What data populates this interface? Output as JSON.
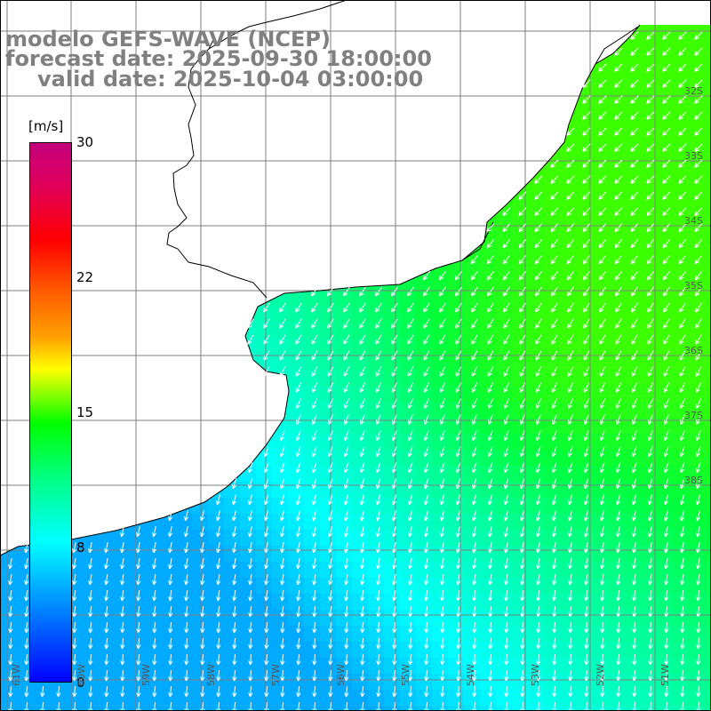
{
  "titles": {
    "model": "modelo GEFS-WAVE (NCEP)",
    "forecast": "forecast date: 2025-09-30 18:00:00",
    "valid": "valid date: 2025-10-04 03:00:00"
  },
  "colorbar": {
    "units": "[m/s]",
    "ticks": [
      {
        "label": "30",
        "value": 30
      },
      {
        "label": "22",
        "value": 22
      },
      {
        "label": "15",
        "value": 15
      },
      {
        "label": "8",
        "value": 8
      },
      {
        "label": "0",
        "value": 0
      }
    ],
    "colors": [
      "#0000ff",
      "#0080ff",
      "#00ffff",
      "#00ff80",
      "#00ff00",
      "#80ff00",
      "#ffff00",
      "#ffa000",
      "#ff6000",
      "#ff0000",
      "#c4007c"
    ]
  },
  "axes": {
    "lon_labels": [
      "61W",
      "60W",
      "59W",
      "58W",
      "57W",
      "56W",
      "55W",
      "54W",
      "53W",
      "52W",
      "51W"
    ],
    "lat_labels": [
      "32S",
      "33S",
      "34S",
      "35S",
      "36S",
      "37S",
      "38S"
    ]
  },
  "colors": {
    "land": "#ffffff",
    "coast": "#000000",
    "grid": "#7f7f7f",
    "arrow": "#ffffff",
    "title": "#808080"
  },
  "wind_field": {
    "variable": "wind speed and direction",
    "units": "m/s",
    "direction": "from north-east, pointing south-west near the coast and south offshore",
    "speed_range": [
      6,
      14
    ]
  }
}
